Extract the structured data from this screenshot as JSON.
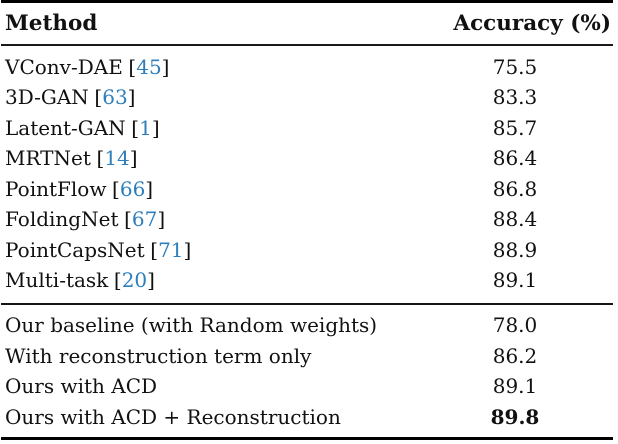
{
  "table": {
    "header": {
      "method": "Method",
      "accuracy": "Accuracy (%)"
    },
    "citation_brackets": {
      "open": "[",
      "close": "]"
    },
    "colors": {
      "citation_blue": "#2e7ebc",
      "text": "#111111",
      "rule": "#000000"
    },
    "group1": [
      {
        "method": "VConv-DAE",
        "cite": "45",
        "accuracy": "75.5"
      },
      {
        "method": "3D-GAN",
        "cite": "63",
        "accuracy": "83.3"
      },
      {
        "method": "Latent-GAN",
        "cite": "1",
        "accuracy": "85.7"
      },
      {
        "method": "MRTNet",
        "cite": "14",
        "accuracy": "86.4"
      },
      {
        "method": "PointFlow",
        "cite": "66",
        "accuracy": "86.8"
      },
      {
        "method": "FoldingNet",
        "cite": "67",
        "accuracy": "88.4"
      },
      {
        "method": "PointCapsNet",
        "cite": "71",
        "accuracy": "88.9"
      },
      {
        "method": "Multi-task",
        "cite": "20",
        "accuracy": "89.1"
      }
    ],
    "group2": [
      {
        "method": "Our baseline (with Random weights)",
        "accuracy": "78.0"
      },
      {
        "method": "With reconstruction term only",
        "accuracy": "86.2"
      },
      {
        "method": "Ours with ACD",
        "accuracy": "89.1"
      },
      {
        "method": "Ours with ACD + Reconstruction",
        "accuracy": "89.8"
      }
    ]
  }
}
